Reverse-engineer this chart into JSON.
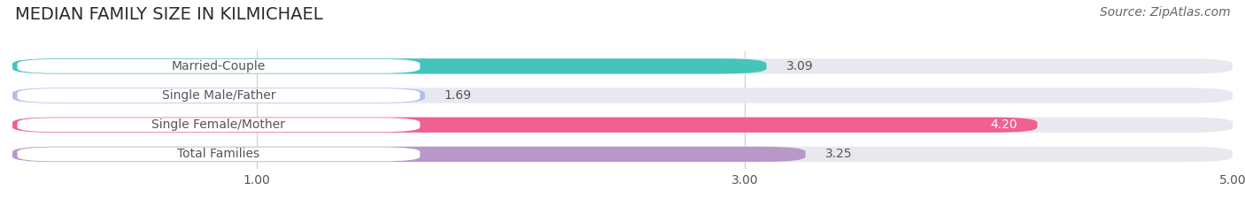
{
  "title": "MEDIAN FAMILY SIZE IN KILMICHAEL",
  "source": "Source: ZipAtlas.com",
  "categories": [
    "Married-Couple",
    "Single Male/Father",
    "Single Female/Mother",
    "Total Families"
  ],
  "values": [
    3.09,
    1.69,
    4.2,
    3.25
  ],
  "bar_colors": [
    "#45c4bc",
    "#afc0e8",
    "#f06090",
    "#b898c8"
  ],
  "bar_bg_color": "#e8e8ee",
  "value_labels": [
    "3.09",
    "1.69",
    "4.20",
    "3.25"
  ],
  "value_label_inside": [
    false,
    false,
    true,
    false
  ],
  "xmin": 0.0,
  "xmax": 5.0,
  "xticks": [
    1.0,
    3.0,
    5.0
  ],
  "xtick_labels": [
    "1.00",
    "3.00",
    "5.00"
  ],
  "title_fontsize": 14,
  "source_fontsize": 10,
  "cat_label_fontsize": 10,
  "value_fontsize": 10,
  "tick_fontsize": 10,
  "figsize": [
    14.06,
    2.33
  ],
  "dpi": 100,
  "bg_color": "#ffffff",
  "grid_color": "#cccccc",
  "text_color": "#555555",
  "value_color_outside": "#555555",
  "value_color_inside": "#ffffff"
}
